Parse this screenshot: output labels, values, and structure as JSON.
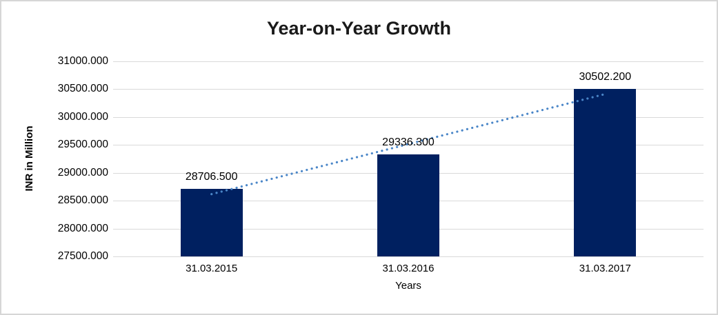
{
  "chart_data": {
    "type": "bar",
    "title": "Year-on-Year Growth",
    "xlabel": "Years",
    "ylabel": "INR in Million",
    "categories": [
      "31.03.2015",
      "31.03.2016",
      "31.03.2017"
    ],
    "values": [
      28706.5,
      29336.3,
      30502.2
    ],
    "data_labels": [
      "28706.500",
      "29336.300",
      "30502.200"
    ],
    "ytick_labels": [
      "31000.000",
      "30500.000",
      "30000.000",
      "29500.000",
      "29000.000",
      "28500.000",
      "28000.000",
      "27500.000"
    ],
    "ylim": [
      27500,
      31000
    ],
    "grid": "on",
    "legend": "none",
    "trendline": {
      "style": "dotted",
      "type": "linear"
    },
    "colors": {
      "bar": "#002060",
      "trendline": "#4a86c8",
      "gridline": "#d9d9d9",
      "text": "#000000",
      "title_text": "#1a1a1a",
      "frame_border": "#d6d6d6",
      "background": "#ffffff"
    }
  }
}
